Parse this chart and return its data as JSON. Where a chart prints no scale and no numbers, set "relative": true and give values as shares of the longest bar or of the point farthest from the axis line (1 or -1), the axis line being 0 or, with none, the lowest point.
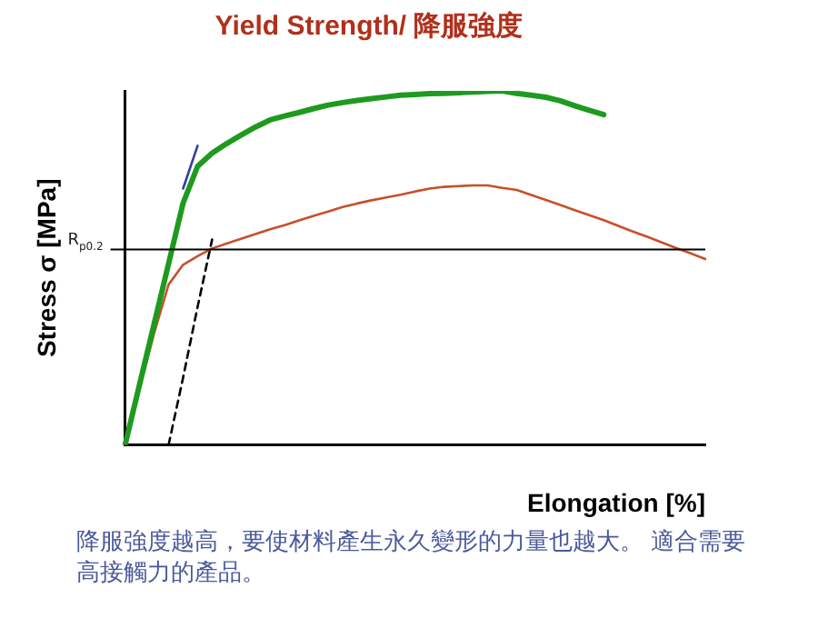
{
  "chart_data": {
    "type": "line",
    "title": "Yield Strength/ 降服強度",
    "xlabel": "Elongation [%]",
    "ylabel": "Stress σ [MPa]",
    "relative": true,
    "legend": false,
    "marker": "none",
    "categories": [
      null,
      null,
      null,
      null,
      null,
      null,
      null,
      null,
      null,
      null,
      null,
      null,
      null,
      null,
      null,
      null,
      null,
      null,
      null,
      null,
      null,
      null,
      null,
      null,
      null,
      null,
      null,
      null,
      null,
      null,
      null,
      null,
      null,
      null,
      null,
      null,
      null,
      null,
      null,
      null,
      null
    ],
    "series": [
      {
        "color": "#1e9a1e",
        "values": [
          0,
          0.171,
          0.341,
          0.512,
          0.683,
          0.787,
          0.824,
          0.851,
          0.875,
          0.898,
          0.918,
          0.929,
          0.939,
          0.95,
          0.96,
          0.967,
          0.973,
          0.978,
          0.983,
          0.988,
          0.99,
          0.992,
          0.993,
          0.995,
          0.997,
          0.999,
          1,
          0.993,
          0.988,
          0.982,
          0.972,
          0.958,
          0.945,
          0.933,
          null,
          null,
          null,
          null,
          null,
          null,
          null
        ]
      },
      {
        "color": "#3040a0",
        "values": [
          null,
          null,
          null,
          null,
          0.724,
          0.845,
          null,
          null,
          null,
          null,
          null,
          null,
          null,
          null,
          null,
          null,
          null,
          null,
          null,
          null,
          null,
          null,
          null,
          null,
          null,
          null,
          null,
          null,
          null,
          null,
          null,
          null,
          null,
          null,
          null,
          null,
          null,
          null,
          null,
          null,
          null
        ]
      },
      {
        "color": "#c8502a",
        "values": [
          0,
          0.158,
          0.315,
          0.453,
          0.509,
          0.533,
          0.555,
          0.569,
          0.582,
          0.596,
          0.609,
          0.621,
          0.634,
          0.647,
          0.659,
          0.672,
          0.682,
          0.691,
          0.699,
          0.707,
          0.716,
          0.724,
          0.729,
          0.731,
          0.733,
          0.733,
          0.726,
          0.72,
          0.706,
          0.692,
          0.678,
          0.663,
          0.649,
          0.635,
          0.619,
          0.603,
          0.588,
          0.572,
          0.556,
          0.541,
          0.525
        ]
      },
      {
        "color": "#000000",
        "line_style": "dashed",
        "values": [
          null,
          null,
          null,
          0,
          0.19,
          0.39,
          0.58,
          null,
          null,
          null,
          null,
          null,
          null,
          null,
          null,
          null,
          null,
          null,
          null,
          null,
          null,
          null,
          null,
          null,
          null,
          null,
          null,
          null,
          null,
          null,
          null,
          null,
          null,
          null,
          null,
          null,
          null,
          null,
          null,
          null,
          null
        ]
      }
    ],
    "ref_lines": [
      {
        "axis": "y",
        "value": 0.552,
        "label": "R$_{p0.2}$",
        "color": "#000000"
      }
    ],
    "annotations": [
      "降服強度越高，要使材料產生永久變形的力量也越大。 適合需要高接觸力的產品。"
    ]
  }
}
